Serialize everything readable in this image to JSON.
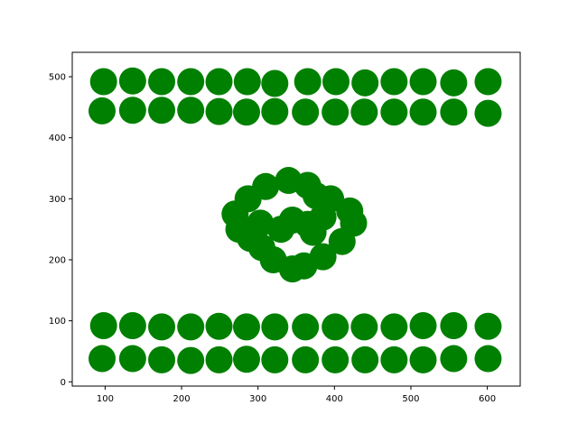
{
  "chart_data": {
    "type": "scatter",
    "title": "",
    "xlabel": "",
    "ylabel": "",
    "xlim": [
      57,
      643
    ],
    "ylim": [
      -7,
      540
    ],
    "x_ticks": [
      100,
      200,
      300,
      400,
      500,
      600
    ],
    "y_ticks": [
      0,
      100,
      200,
      300,
      400,
      500
    ],
    "x_tick_labels": [
      "100",
      "200",
      "300",
      "400",
      "500",
      "600"
    ],
    "y_tick_labels": [
      "0",
      "100",
      "200",
      "300",
      "400",
      "500"
    ],
    "grid": false,
    "legend": "none",
    "colors": {
      "marker": "#008000",
      "axes": "#000000",
      "background": "#ffffff"
    },
    "series": [
      {
        "points": [
          [
            98,
            492
          ],
          [
            136,
            493
          ],
          [
            174,
            492
          ],
          [
            212,
            492
          ],
          [
            249,
            492
          ],
          [
            286,
            492
          ],
          [
            322,
            489
          ],
          [
            365,
            492
          ],
          [
            402,
            492
          ],
          [
            440,
            490
          ],
          [
            478,
            492
          ],
          [
            516,
            492
          ],
          [
            556,
            490
          ],
          [
            601,
            492
          ],
          [
            96,
            444
          ],
          [
            136,
            445
          ],
          [
            174,
            445
          ],
          [
            212,
            445
          ],
          [
            249,
            443
          ],
          [
            285,
            442
          ],
          [
            322,
            443
          ],
          [
            362,
            442
          ],
          [
            401,
            442
          ],
          [
            439,
            442
          ],
          [
            478,
            442
          ],
          [
            516,
            442
          ],
          [
            556,
            442
          ],
          [
            601,
            440
          ],
          [
            98,
            92
          ],
          [
            136,
            92
          ],
          [
            174,
            90
          ],
          [
            212,
            90
          ],
          [
            249,
            91
          ],
          [
            285,
            90
          ],
          [
            322,
            90
          ],
          [
            362,
            90
          ],
          [
            401,
            90
          ],
          [
            439,
            90
          ],
          [
            478,
            90
          ],
          [
            516,
            92
          ],
          [
            556,
            92
          ],
          [
            601,
            91
          ],
          [
            96,
            38
          ],
          [
            136,
            38
          ],
          [
            174,
            36
          ],
          [
            212,
            35
          ],
          [
            249,
            36
          ],
          [
            285,
            37
          ],
          [
            322,
            36
          ],
          [
            362,
            36
          ],
          [
            401,
            36
          ],
          [
            440,
            36
          ],
          [
            478,
            36
          ],
          [
            516,
            36
          ],
          [
            556,
            38
          ],
          [
            601,
            38
          ],
          [
            287,
            300
          ],
          [
            310,
            320
          ],
          [
            340,
            330
          ],
          [
            365,
            322
          ],
          [
            376,
            305
          ],
          [
            270,
            275
          ],
          [
            275,
            250
          ],
          [
            290,
            235
          ],
          [
            305,
            220
          ],
          [
            320,
            200
          ],
          [
            345,
            185
          ],
          [
            360,
            190
          ],
          [
            385,
            205
          ],
          [
            410,
            230
          ],
          [
            425,
            260
          ],
          [
            420,
            280
          ],
          [
            395,
            300
          ],
          [
            345,
            265
          ],
          [
            365,
            258
          ],
          [
            385,
            270
          ],
          [
            372,
            245
          ],
          [
            303,
            260
          ],
          [
            330,
            250
          ]
        ]
      }
    ]
  }
}
